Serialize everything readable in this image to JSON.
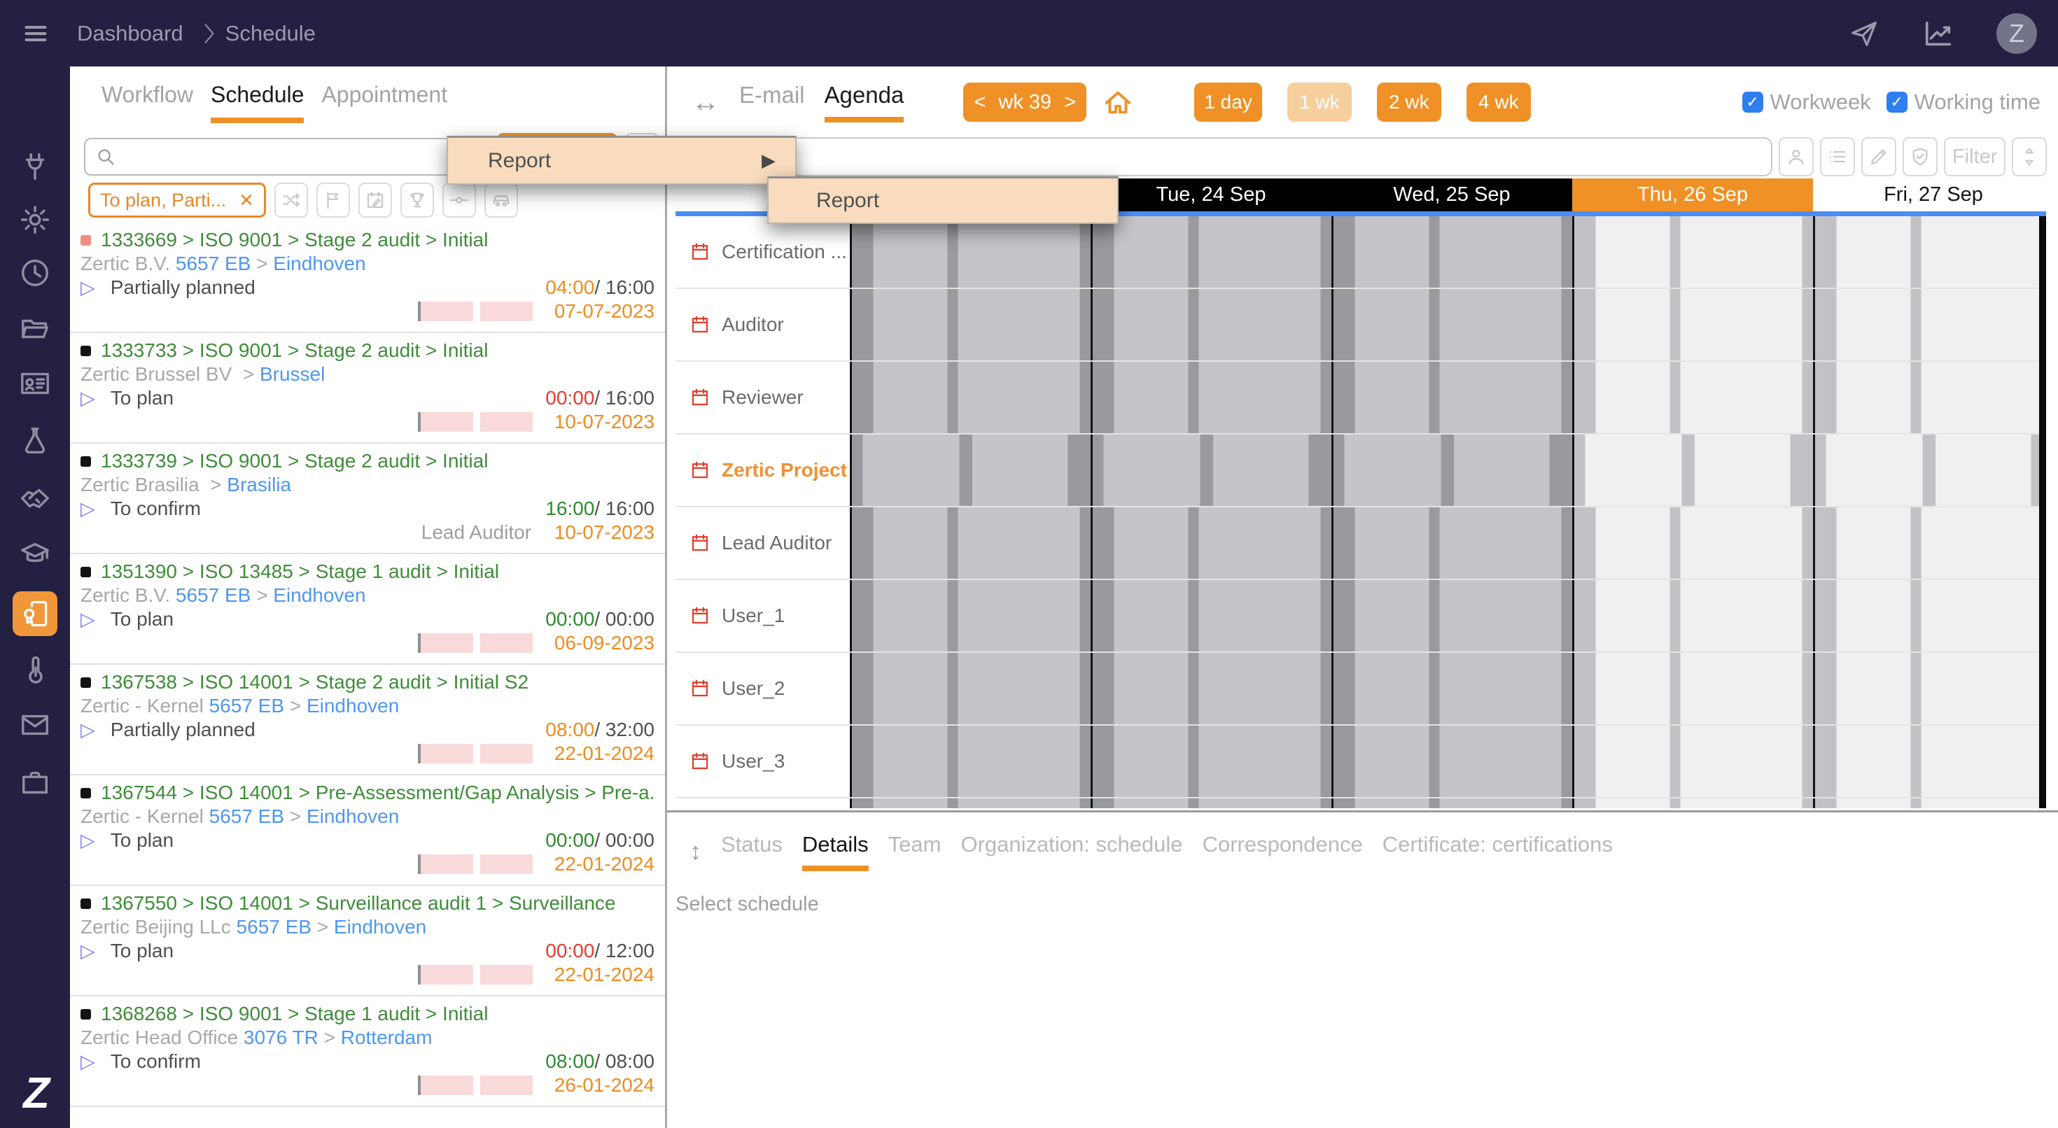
{
  "navbar": {
    "breadcrumb": [
      "Dashboard",
      "Schedule"
    ],
    "icons": [
      "hamburger-icon",
      "send-icon",
      "chart-icon"
    ],
    "avatar_initial": "Z"
  },
  "sidebar": {
    "icons": [
      "plug",
      "gear",
      "clock",
      "folder",
      "id-card",
      "flask",
      "handshake",
      "graduation-cap",
      "certificate",
      "thermometer",
      "envelope",
      "briefcase"
    ],
    "active_icon": "certificate",
    "logo": "Z"
  },
  "left_panel": {
    "tabs": [
      {
        "label": "Workflow",
        "active": false
      },
      {
        "label": "Schedule",
        "active": true
      },
      {
        "label": "Appointment",
        "active": false
      }
    ],
    "search_placeholder": "",
    "filter_chip": {
      "label": "To plan, Parti...",
      "close": "✕"
    },
    "toolbar_icons": [
      "shuffle",
      "flag",
      "calendar-edit",
      "trophy",
      "connector",
      "car"
    ],
    "schedules": [
      {
        "id": "1333669",
        "path": "ISO 9001 > Stage 2 audit > Initial",
        "bullet": "salmon",
        "org": "Zertic B.V.",
        "code": "5657 EB",
        "city": "Eindhoven",
        "status": "Partially planned",
        "planned": "04:00",
        "planned_state": "orange",
        "total": "16:00",
        "note": "",
        "date": "07-07-2023",
        "bar": true
      },
      {
        "id": "1333733",
        "path": "ISO 9001 > Stage 2 audit > Initial",
        "bullet": "black",
        "org": "Zertic Brussel BV",
        "code": "",
        "city": "Brussel",
        "status": "To plan",
        "planned": "00:00",
        "planned_state": "red",
        "total": "16:00",
        "note": "",
        "date": "10-07-2023",
        "bar": true
      },
      {
        "id": "1333739",
        "path": "ISO 9001 > Stage 2 audit > Initial",
        "bullet": "black",
        "org": "Zertic Brasilia",
        "code": "",
        "city": "Brasilia",
        "status": "To confirm",
        "planned": "16:00",
        "planned_state": "green",
        "total": "16:00",
        "note": "Lead Auditor",
        "date": "10-07-2023",
        "bar": false
      },
      {
        "id": "1351390",
        "path": "ISO 13485 > Stage 1 audit > Initial",
        "bullet": "black",
        "org": "Zertic B.V.",
        "code": "5657 EB",
        "city": "Eindhoven",
        "status": "To plan",
        "planned": "00:00",
        "planned_state": "green",
        "total": "00:00",
        "note": "",
        "date": "06-09-2023",
        "bar": true
      },
      {
        "id": "1367538",
        "path": "ISO 14001 > Stage 2 audit > Initial S2",
        "bullet": "black",
        "org": "Zertic - Kernel",
        "code": "5657 EB",
        "city": "Eindhoven",
        "status": "Partially planned",
        "planned": "08:00",
        "planned_state": "orange",
        "total": "32:00",
        "note": "",
        "date": "22-01-2024",
        "bar": true
      },
      {
        "id": "1367544",
        "path": "ISO 14001 > Pre-Assessment/Gap Analysis > Pre-a...",
        "bullet": "black",
        "org": "Zertic - Kernel",
        "code": "5657 EB",
        "city": "Eindhoven",
        "status": "To plan",
        "planned": "00:00",
        "planned_state": "green",
        "total": "00:00",
        "note": "",
        "date": "22-01-2024",
        "bar": true
      },
      {
        "id": "1367550",
        "path": "ISO 14001 > Surveillance audit 1 > Surveillance",
        "bullet": "black",
        "org": "Zertic Beijing LLc",
        "code": "5657 EB",
        "city": "Eindhoven",
        "status": "To plan",
        "planned": "00:00",
        "planned_state": "red",
        "total": "12:00",
        "note": "",
        "date": "22-01-2024",
        "bar": true
      },
      {
        "id": "1368268",
        "path": "ISO 9001 > Stage 1 audit > Initial",
        "bullet": "black",
        "org": "Zertic Head Office",
        "code": "3076 TR",
        "city": "Rotterdam",
        "status": "To confirm",
        "planned": "08:00",
        "planned_state": "green",
        "total": "08:00",
        "note": "",
        "date": "26-01-2024",
        "bar": true
      }
    ]
  },
  "context_menu": {
    "items": [
      {
        "label": "Report",
        "has_submenu": true
      }
    ],
    "submenu_items": [
      {
        "label": "Report"
      }
    ]
  },
  "agenda": {
    "collapse_icon": "↔",
    "tabs": [
      {
        "label": "E-mail",
        "active": false
      },
      {
        "label": "Agenda",
        "active": true
      }
    ],
    "week_nav": {
      "prev": "<",
      "label": "wk 39",
      "next": ">"
    },
    "views": [
      {
        "label": "1 day",
        "selected": false
      },
      {
        "label": "1 wk",
        "selected": true
      },
      {
        "label": "2 wk",
        "selected": false
      },
      {
        "label": "4 wk",
        "selected": false
      }
    ],
    "toggles": [
      {
        "label": "Workweek",
        "checked": true
      },
      {
        "label": "Working time",
        "checked": true
      }
    ],
    "search_placeholder": "",
    "tool_icons": [
      "person",
      "list",
      "pencil",
      "shield-check"
    ],
    "filter_button": "Filter",
    "sort_icon": "sort",
    "day_headers": [
      {
        "label": "",
        "state": "past"
      },
      {
        "label": "Tue, 24 Sep",
        "state": "past"
      },
      {
        "label": "Wed, 25 Sep",
        "state": "past"
      },
      {
        "label": "Thu, 26 Sep",
        "state": "today"
      },
      {
        "label": "Fri, 27 Sep",
        "state": "future"
      }
    ],
    "resources": [
      {
        "name": "Certification ...",
        "highlight": false
      },
      {
        "name": "Auditor",
        "highlight": false
      },
      {
        "name": "Reviewer",
        "highlight": false
      },
      {
        "name": "Zertic Project",
        "highlight": true
      },
      {
        "name": "Lead Auditor",
        "highlight": false
      },
      {
        "name": "User_1",
        "highlight": false
      },
      {
        "name": "User_2",
        "highlight": false
      },
      {
        "name": "User_3",
        "highlight": false
      }
    ]
  },
  "bottom_panel": {
    "resize_icon": "↕",
    "tabs": [
      {
        "label": "Status",
        "active": false
      },
      {
        "label": "Details",
        "active": true
      },
      {
        "label": "Team",
        "active": false
      },
      {
        "label": "Organization: schedule",
        "active": false
      },
      {
        "label": "Correspondence",
        "active": false
      },
      {
        "label": "Certificate: certifications",
        "active": false
      }
    ],
    "empty_text": "Select schedule"
  },
  "colors": {
    "navbar_bg": "#232041",
    "accent_orange": "#ef9126",
    "accent_light_orange": "#f6cf9d",
    "menu_bg": "#f8dcbd",
    "chip_orange": "#e8872a",
    "green_text": "#3f8c39",
    "blue_link": "#4e97f0",
    "date_orange": "#ee8b1e",
    "time_red": "#e33c2f",
    "time_green": "#2e8b2e",
    "checkbox_blue": "#2e7ff0",
    "bullet_salmon": "#ef8e80",
    "grid_past_light": "#c5c5c9",
    "grid_past_dark": "#999a9e",
    "grid_future_light": "#f0f0f1",
    "grid_future_dark": "#c2c2c6"
  }
}
